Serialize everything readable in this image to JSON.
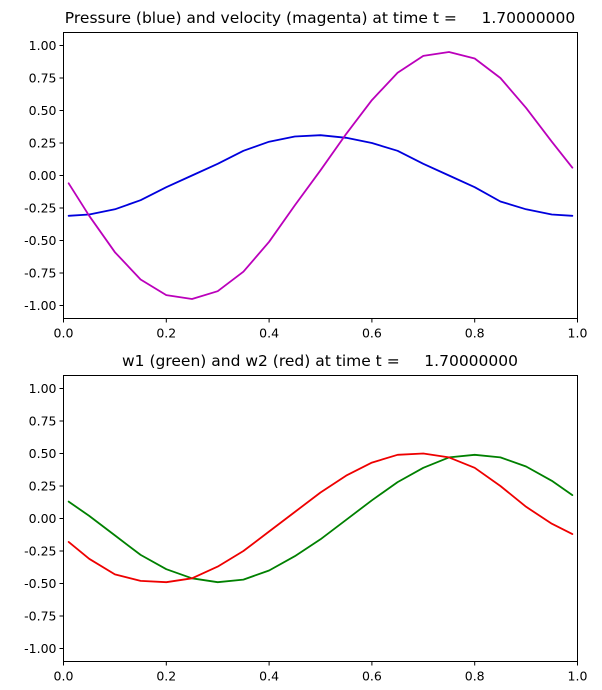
{
  "chart_data": [
    {
      "type": "line",
      "title": "Pressure (blue) and velocity (magenta) at time t =     1.70000000",
      "xlim": [
        0,
        1
      ],
      "ylim": [
        -1.1,
        1.1
      ],
      "xticks": [
        "0.0",
        "0.2",
        "0.4",
        "0.6",
        "0.8",
        "1.0"
      ],
      "yticks": [
        "-1.00",
        "-0.75",
        "-0.50",
        "-0.25",
        "0.00",
        "0.25",
        "0.50",
        "0.75",
        "1.00"
      ],
      "grid": false,
      "series": [
        {
          "color": "#0000dd",
          "x": [
            0.01,
            0.05,
            0.1,
            0.15,
            0.2,
            0.25,
            0.3,
            0.35,
            0.4,
            0.45,
            0.5,
            0.55,
            0.6,
            0.65,
            0.7,
            0.75,
            0.8,
            0.85,
            0.9,
            0.95,
            0.99
          ],
          "y": [
            -0.31,
            -0.3,
            -0.26,
            -0.19,
            -0.09,
            0.0,
            0.09,
            0.19,
            0.26,
            0.3,
            0.31,
            0.29,
            0.25,
            0.19,
            0.09,
            0.0,
            -0.09,
            -0.2,
            -0.26,
            -0.3,
            -0.31
          ]
        },
        {
          "color": "#bb00bb",
          "x": [
            0.01,
            0.05,
            0.1,
            0.15,
            0.2,
            0.25,
            0.3,
            0.35,
            0.4,
            0.45,
            0.5,
            0.55,
            0.6,
            0.65,
            0.7,
            0.75,
            0.8,
            0.85,
            0.9,
            0.95,
            0.99
          ],
          "y": [
            -0.06,
            -0.31,
            -0.59,
            -0.8,
            -0.92,
            -0.95,
            -0.89,
            -0.74,
            -0.51,
            -0.23,
            0.04,
            0.32,
            0.58,
            0.79,
            0.92,
            0.95,
            0.9,
            0.75,
            0.52,
            0.26,
            0.06
          ]
        }
      ]
    },
    {
      "type": "line",
      "title": "w1 (green) and w2 (red) at time t =     1.70000000",
      "xlim": [
        0,
        1
      ],
      "ylim": [
        -1.1,
        1.1
      ],
      "xticks": [
        "0.0",
        "0.2",
        "0.4",
        "0.6",
        "0.8",
        "1.0"
      ],
      "yticks": [
        "-1.00",
        "-0.75",
        "-0.50",
        "-0.25",
        "0.00",
        "0.25",
        "0.50",
        "0.75",
        "1.00"
      ],
      "grid": false,
      "series": [
        {
          "color": "#008000",
          "x": [
            0.01,
            0.05,
            0.1,
            0.15,
            0.2,
            0.25,
            0.3,
            0.35,
            0.4,
            0.45,
            0.5,
            0.55,
            0.6,
            0.65,
            0.7,
            0.75,
            0.8,
            0.85,
            0.9,
            0.95,
            0.99
          ],
          "y": [
            0.13,
            0.02,
            -0.13,
            -0.28,
            -0.39,
            -0.46,
            -0.49,
            -0.47,
            -0.4,
            -0.29,
            -0.16,
            -0.01,
            0.14,
            0.28,
            0.39,
            0.47,
            0.49,
            0.47,
            0.4,
            0.29,
            0.18
          ]
        },
        {
          "color": "#ee0000",
          "x": [
            0.01,
            0.05,
            0.1,
            0.15,
            0.2,
            0.25,
            0.3,
            0.35,
            0.4,
            0.45,
            0.5,
            0.55,
            0.6,
            0.65,
            0.7,
            0.75,
            0.8,
            0.85,
            0.9,
            0.95,
            0.99
          ],
          "y": [
            -0.18,
            -0.31,
            -0.43,
            -0.48,
            -0.49,
            -0.46,
            -0.37,
            -0.25,
            -0.1,
            0.05,
            0.2,
            0.33,
            0.43,
            0.49,
            0.5,
            0.47,
            0.39,
            0.25,
            0.09,
            -0.04,
            -0.12
          ]
        }
      ]
    }
  ]
}
